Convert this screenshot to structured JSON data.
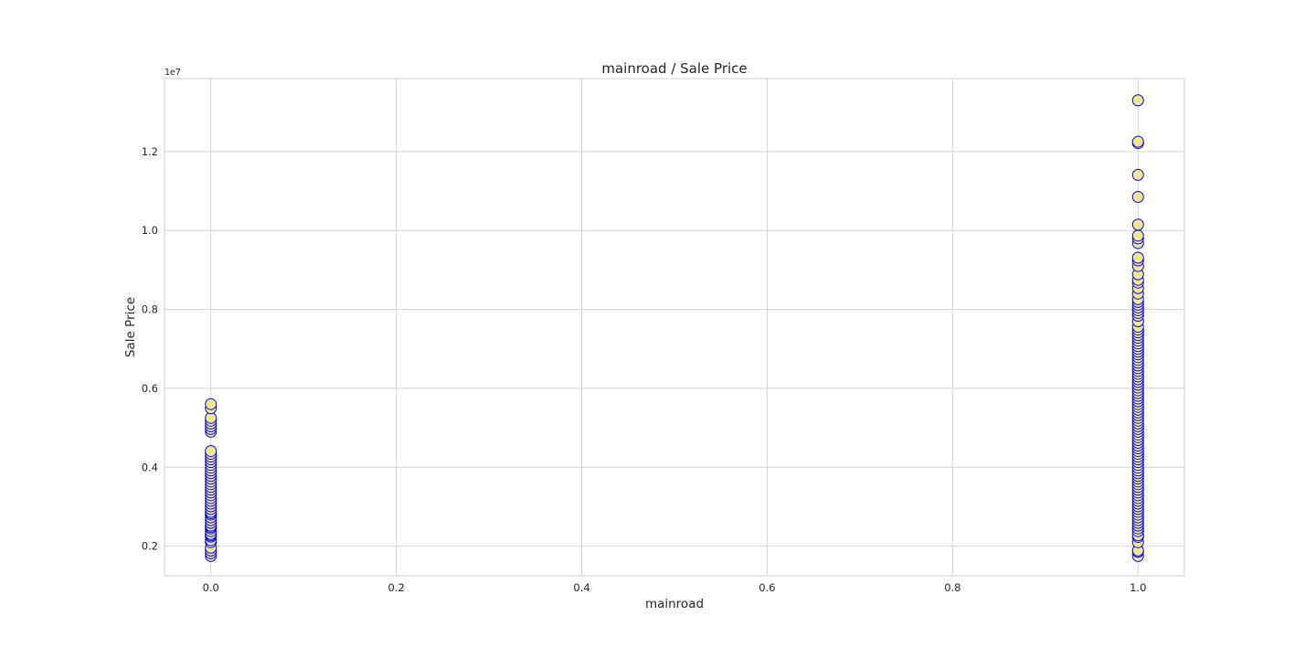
{
  "chart_data": {
    "type": "scatter",
    "title": "mainroad / Sale Price",
    "xlabel": "mainroad",
    "ylabel": "Sale Price",
    "y_offset_label": "1e7",
    "xlim": [
      -0.05,
      1.05
    ],
    "ylim": [
      1250000,
      13850000
    ],
    "x_ticks": [
      {
        "value": 0.0,
        "label": "0.0"
      },
      {
        "value": 0.2,
        "label": "0.2"
      },
      {
        "value": 0.4,
        "label": "0.4"
      },
      {
        "value": 0.6,
        "label": "0.6"
      },
      {
        "value": 0.8,
        "label": "0.8"
      },
      {
        "value": 1.0,
        "label": "1.0"
      }
    ],
    "y_ticks": [
      {
        "value": 2000000,
        "label": "0.2"
      },
      {
        "value": 4000000,
        "label": "0.4"
      },
      {
        "value": 6000000,
        "label": "0.6"
      },
      {
        "value": 8000000,
        "label": "0.8"
      },
      {
        "value": 10000000,
        "label": "1.0"
      },
      {
        "value": 12000000,
        "label": "1.2"
      }
    ],
    "grid": true,
    "colors": {
      "marker_fill": "#f0e68c",
      "marker_edge": "#0000ff"
    },
    "series": [
      {
        "x": 0,
        "y": [
          1750000,
          1820000,
          1890000,
          1960000,
          2100000,
          2150000,
          2240000,
          2275000,
          2310000,
          2380000,
          2450000,
          2485000,
          2520000,
          2590000,
          2660000,
          2730000,
          2800000,
          2835000,
          2870000,
          2940000,
          3010000,
          3080000,
          3150000,
          3220000,
          3290000,
          3360000,
          3430000,
          3500000,
          3570000,
          3640000,
          3710000,
          3780000,
          3850000,
          3920000,
          3990000,
          4060000,
          4130000,
          4200000,
          4270000,
          4340000,
          4410000,
          4900000,
          4970000,
          5040000,
          5110000,
          5180000,
          5250000,
          5495000,
          5600000
        ]
      },
      {
        "x": 1,
        "y": [
          1750000,
          1855000,
          1890000,
          2100000,
          2233000,
          2275000,
          2380000,
          2450000,
          2520000,
          2590000,
          2660000,
          2730000,
          2800000,
          2870000,
          2940000,
          3010000,
          3080000,
          3150000,
          3220000,
          3290000,
          3360000,
          3430000,
          3500000,
          3570000,
          3640000,
          3710000,
          3780000,
          3850000,
          3920000,
          3990000,
          4060000,
          4130000,
          4200000,
          4270000,
          4340000,
          4410000,
          4480000,
          4550000,
          4620000,
          4690000,
          4760000,
          4830000,
          4900000,
          4970000,
          5040000,
          5110000,
          5180000,
          5250000,
          5320000,
          5390000,
          5460000,
          5530000,
          5600000,
          5670000,
          5740000,
          5810000,
          5880000,
          5950000,
          6020000,
          6090000,
          6160000,
          6230000,
          6300000,
          6370000,
          6440000,
          6510000,
          6580000,
          6650000,
          6720000,
          6790000,
          6860000,
          6930000,
          7000000,
          7070000,
          7140000,
          7210000,
          7280000,
          7350000,
          7420000,
          7490000,
          7560000,
          7700000,
          7840000,
          7910000,
          7980000,
          8050000,
          8120000,
          8190000,
          8260000,
          8400000,
          8540000,
          8680000,
          8750000,
          8890000,
          9100000,
          9240000,
          9310000,
          9681000,
          9800000,
          9870000,
          10150000,
          10850000,
          11410000,
          12215000,
          12250000,
          13300000
        ]
      }
    ]
  }
}
